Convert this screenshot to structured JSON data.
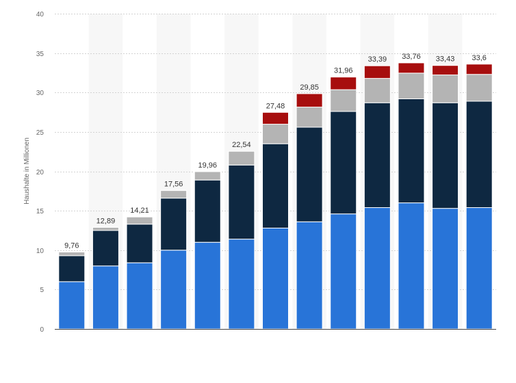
{
  "chart_data": {
    "type": "bar",
    "stacked": true,
    "title": "",
    "xlabel": "",
    "ylabel": "Haushalte in Millionen",
    "ylim": [
      0,
      40
    ],
    "yticks": [
      "0",
      "5",
      "10",
      "15",
      "20",
      "25",
      "30",
      "35",
      "40"
    ],
    "grid": true,
    "legend": "none",
    "categories": [
      "",
      "",
      "",
      "",
      "",
      "",
      "",
      "",
      "",
      "",
      "",
      "",
      ""
    ],
    "series": [
      {
        "color": "#2874d8",
        "values": [
          6.0,
          8.0,
          8.4,
          10.0,
          11.0,
          11.4,
          12.8,
          13.6,
          14.6,
          15.4,
          16.0,
          15.3,
          15.4
        ]
      },
      {
        "color": "#0e2841",
        "values": [
          3.3,
          4.5,
          4.9,
          6.6,
          7.9,
          9.4,
          10.7,
          12.0,
          13.0,
          13.3,
          13.2,
          13.4,
          13.5
        ]
      },
      {
        "color": "#b4b4b4",
        "values": [
          0.46,
          0.39,
          0.91,
          0.96,
          1.06,
          1.74,
          2.48,
          2.55,
          2.76,
          3.09,
          3.26,
          3.53,
          3.4
        ]
      },
      {
        "color": "#a70e0e",
        "values": [
          0,
          0,
          0,
          0,
          0,
          0,
          1.5,
          1.7,
          1.6,
          1.6,
          1.3,
          1.2,
          1.3
        ]
      }
    ],
    "totals": [
      "9,76",
      "12,89",
      "14,21",
      "17,56",
      "19,96",
      "22,54",
      "27,48",
      "29,85",
      "31,96",
      "33,39",
      "33,76",
      "33,43",
      "33,6"
    ],
    "total_values": [
      9.76,
      12.89,
      14.21,
      17.56,
      19.96,
      22.54,
      27.48,
      29.85,
      31.96,
      33.39,
      33.76,
      33.43,
      33.6
    ]
  }
}
